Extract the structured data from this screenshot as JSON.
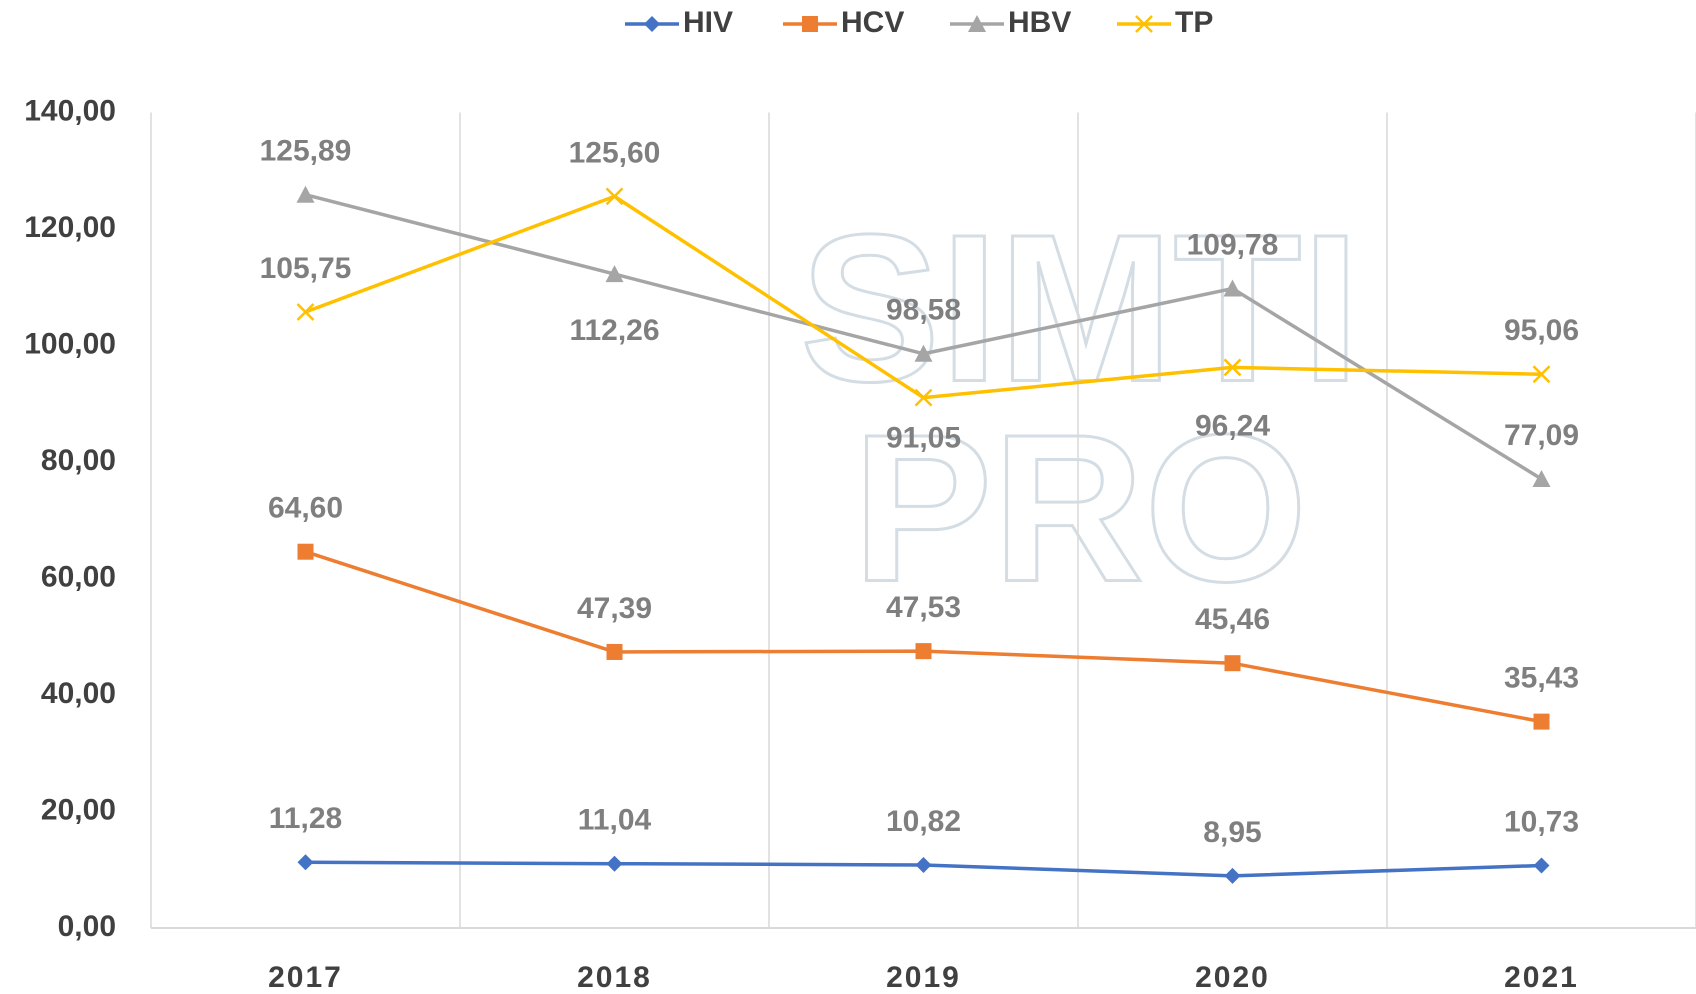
{
  "chart_data": {
    "type": "line",
    "categories": [
      "2017",
      "2018",
      "2019",
      "2020",
      "2021"
    ],
    "series": [
      {
        "name": "HIV",
        "color": "#4472c4",
        "marker": "diamond",
        "values": [
          11.28,
          11.04,
          10.82,
          8.95,
          10.73
        ],
        "value_labels": [
          "11,28",
          "11,04",
          "10,82",
          "8,95",
          "10,73"
        ]
      },
      {
        "name": "HCV",
        "color": "#ed7d31",
        "marker": "square",
        "values": [
          64.6,
          47.39,
          47.53,
          45.46,
          35.43
        ],
        "value_labels": [
          "64,60",
          "47,39",
          "47,53",
          "45,46",
          "35,43"
        ]
      },
      {
        "name": "HBV",
        "color": "#a5a5a5",
        "marker": "triangle",
        "values": [
          125.89,
          112.26,
          98.58,
          109.78,
          77.09
        ],
        "value_labels": [
          "125,89",
          "112,26",
          "98,58",
          "109,78",
          "77,09"
        ]
      },
      {
        "name": "TP",
        "color": "#ffc000",
        "marker": "x",
        "values": [
          105.75,
          125.6,
          91.05,
          96.24,
          95.06
        ],
        "value_labels": [
          "105,75",
          "125,60",
          "91,05",
          "96,24",
          "95,06"
        ]
      }
    ],
    "ylim": [
      0,
      140
    ],
    "yticks": [
      {
        "value": 0,
        "label": "0,00"
      },
      {
        "value": 20,
        "label": "20,00"
      },
      {
        "value": 40,
        "label": "40,00"
      },
      {
        "value": 60,
        "label": "60,00"
      },
      {
        "value": 80,
        "label": "80,00"
      },
      {
        "value": 100,
        "label": "100,00"
      },
      {
        "value": 120,
        "label": "120,00"
      },
      {
        "value": 140,
        "label": "140,00"
      }
    ],
    "grid": true,
    "legend": "top",
    "watermark": [
      "SIMTI",
      "PRO"
    ]
  }
}
